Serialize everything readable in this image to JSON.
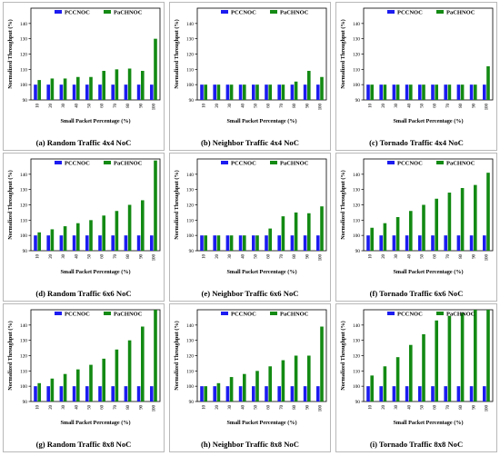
{
  "colors": {
    "PCCNOC": "#1c1cf0",
    "PaCHNOC": "#138a13"
  },
  "chart_data": [
    {
      "type": "bar",
      "caption": "(a) Random Traffic 4x4 NoC",
      "xlabel": "Small Packet Percentage (%)",
      "ylabel": "Normalized Throughput (%)",
      "categories": [
        "10",
        "20",
        "30",
        "40",
        "50",
        "60",
        "70",
        "80",
        "90",
        "100"
      ],
      "ylim": [
        90,
        150
      ],
      "yticks": [
        "90",
        "100",
        "110",
        "120",
        "130",
        "140"
      ],
      "legend": "top",
      "series": [
        {
          "name": "PCCNOC",
          "values": [
            100,
            100,
            100,
            100,
            100,
            100,
            100,
            100,
            100,
            100
          ]
        },
        {
          "name": "PaCHNOC",
          "values": [
            103,
            104,
            104,
            105,
            105,
            109,
            110,
            110.5,
            109,
            130
          ]
        }
      ]
    },
    {
      "type": "bar",
      "caption": "(b) Neighbor Traffic 4x4 NoC",
      "xlabel": "Small Packet Percentage (%)",
      "ylabel": "Normalized Throughput (%)",
      "categories": [
        "10",
        "20",
        "30",
        "40",
        "50",
        "60",
        "70",
        "80",
        "90",
        "100"
      ],
      "ylim": [
        90,
        150
      ],
      "yticks": [
        "90",
        "100",
        "110",
        "120",
        "130",
        "140"
      ],
      "legend": "top",
      "series": [
        {
          "name": "PCCNOC",
          "values": [
            100,
            100,
            100,
            100,
            100,
            100,
            100,
            100,
            100,
            100
          ]
        },
        {
          "name": "PaCHNOC",
          "values": [
            100,
            100,
            100,
            100,
            100,
            100,
            100,
            102,
            109,
            105
          ]
        }
      ]
    },
    {
      "type": "bar",
      "caption": "(c) Tornado Traffic 4x4 NoC",
      "xlabel": "Small Packet Percentage (%)",
      "ylabel": "Normalized Throughput (%)",
      "categories": [
        "10",
        "20",
        "30",
        "40",
        "50",
        "60",
        "70",
        "80",
        "90",
        "100"
      ],
      "ylim": [
        90,
        150
      ],
      "yticks": [
        "90",
        "100",
        "110",
        "120",
        "130",
        "140"
      ],
      "legend": "top",
      "series": [
        {
          "name": "PCCNOC",
          "values": [
            100,
            100,
            100,
            100,
            100,
            100,
            100,
            100,
            100,
            100
          ]
        },
        {
          "name": "PaCHNOC",
          "values": [
            100,
            100,
            100,
            100,
            100,
            100,
            100,
            100,
            100,
            112
          ]
        }
      ]
    },
    {
      "type": "bar",
      "caption": "(d) Random Traffic 6x6 NoC",
      "xlabel": "Small Packet Percentage (%)",
      "ylabel": "Normalized Throughput (%)",
      "categories": [
        "10",
        "20",
        "30",
        "40",
        "50",
        "60",
        "70",
        "80",
        "90",
        "100"
      ],
      "ylim": [
        90,
        150
      ],
      "yticks": [
        "90",
        "100",
        "110",
        "120",
        "130",
        "140"
      ],
      "legend": "top",
      "series": [
        {
          "name": "PCCNOC",
          "values": [
            100,
            100,
            100,
            100,
            100,
            100,
            100,
            100,
            100,
            100
          ]
        },
        {
          "name": "PaCHNOC",
          "values": [
            102,
            104,
            106,
            108,
            110,
            113,
            116,
            120,
            123,
            149
          ]
        }
      ]
    },
    {
      "type": "bar",
      "caption": "(e) Neighbor Traffic 6x6 NoC",
      "xlabel": "Small Packet Percentage (%)",
      "ylabel": "Normalized Throughput (%)",
      "categories": [
        "10",
        "20",
        "30",
        "40",
        "50",
        "60",
        "70",
        "80",
        "90",
        "100"
      ],
      "ylim": [
        90,
        150
      ],
      "yticks": [
        "90",
        "100",
        "110",
        "120",
        "130",
        "140"
      ],
      "legend": "top",
      "series": [
        {
          "name": "PCCNOC",
          "values": [
            100,
            100,
            100,
            100,
            100,
            100,
            100,
            100,
            100,
            100
          ]
        },
        {
          "name": "PaCHNOC",
          "values": [
            100,
            100,
            100,
            100,
            100,
            104.5,
            112.5,
            115,
            114.5,
            119
          ]
        }
      ]
    },
    {
      "type": "bar",
      "caption": "(f) Tornado Traffic 6x6 NoC",
      "xlabel": "Small Packet Percentage (%)",
      "ylabel": "Normalized Throughput (%)",
      "categories": [
        "10",
        "20",
        "30",
        "40",
        "50",
        "60",
        "70",
        "80",
        "90",
        "100"
      ],
      "ylim": [
        90,
        150
      ],
      "yticks": [
        "90",
        "100",
        "110",
        "120",
        "130",
        "140"
      ],
      "legend": "top",
      "series": [
        {
          "name": "PCCNOC",
          "values": [
            100,
            100,
            100,
            100,
            100,
            100,
            100,
            100,
            100,
            100
          ]
        },
        {
          "name": "PaCHNOC",
          "values": [
            105,
            108,
            112,
            116,
            120,
            124,
            128,
            131,
            133,
            141
          ]
        }
      ]
    },
    {
      "type": "bar",
      "caption": "(g) Random Traffic 8x8 NoC",
      "xlabel": "Small Packet Percentage (%)",
      "ylabel": "Normalized Throughput (%)",
      "categories": [
        "10",
        "20",
        "30",
        "40",
        "50",
        "60",
        "70",
        "80",
        "90",
        "100"
      ],
      "ylim": [
        90,
        150
      ],
      "yticks": [
        "90",
        "100",
        "110",
        "120",
        "130",
        "140"
      ],
      "legend": "top",
      "series": [
        {
          "name": "PCCNOC",
          "values": [
            100,
            100,
            100,
            100,
            100,
            100,
            100,
            100,
            100,
            100
          ]
        },
        {
          "name": "PaCHNOC",
          "values": [
            102,
            105,
            108,
            111,
            114,
            118,
            124,
            130,
            139,
            150
          ]
        }
      ]
    },
    {
      "type": "bar",
      "caption": "(h) Neighbor Traffic 8x8 NoC",
      "xlabel": "Small Packet Percentage (%)",
      "ylabel": "Normalized Throughput (%)",
      "categories": [
        "10",
        "20",
        "30",
        "40",
        "50",
        "60",
        "70",
        "80",
        "90",
        "100"
      ],
      "ylim": [
        90,
        150
      ],
      "yticks": [
        "90",
        "100",
        "110",
        "120",
        "130",
        "140"
      ],
      "legend": "top",
      "series": [
        {
          "name": "PCCNOC",
          "values": [
            100,
            100,
            100,
            100,
            100,
            100,
            100,
            100,
            100,
            100
          ]
        },
        {
          "name": "PaCHNOC",
          "values": [
            100,
            102,
            106,
            108,
            110,
            113,
            117,
            120,
            120,
            139
          ]
        }
      ]
    },
    {
      "type": "bar",
      "caption": "(i) Tornado Traffic 8x8 NoC",
      "xlabel": "Small Packet Percentage (%)",
      "ylabel": "Normalized Throughput (%)",
      "categories": [
        "10",
        "20",
        "30",
        "40",
        "50",
        "60",
        "70",
        "80",
        "90",
        "100"
      ],
      "ylim": [
        90,
        150
      ],
      "yticks": [
        "90",
        "100",
        "110",
        "120",
        "130",
        "140"
      ],
      "legend": "top",
      "series": [
        {
          "name": "PCCNOC",
          "values": [
            100,
            100,
            100,
            100,
            100,
            100,
            100,
            100,
            100,
            100
          ]
        },
        {
          "name": "PaCHNOC",
          "values": [
            107,
            113,
            119,
            127,
            134,
            143,
            146,
            148,
            150,
            150
          ]
        }
      ]
    }
  ]
}
